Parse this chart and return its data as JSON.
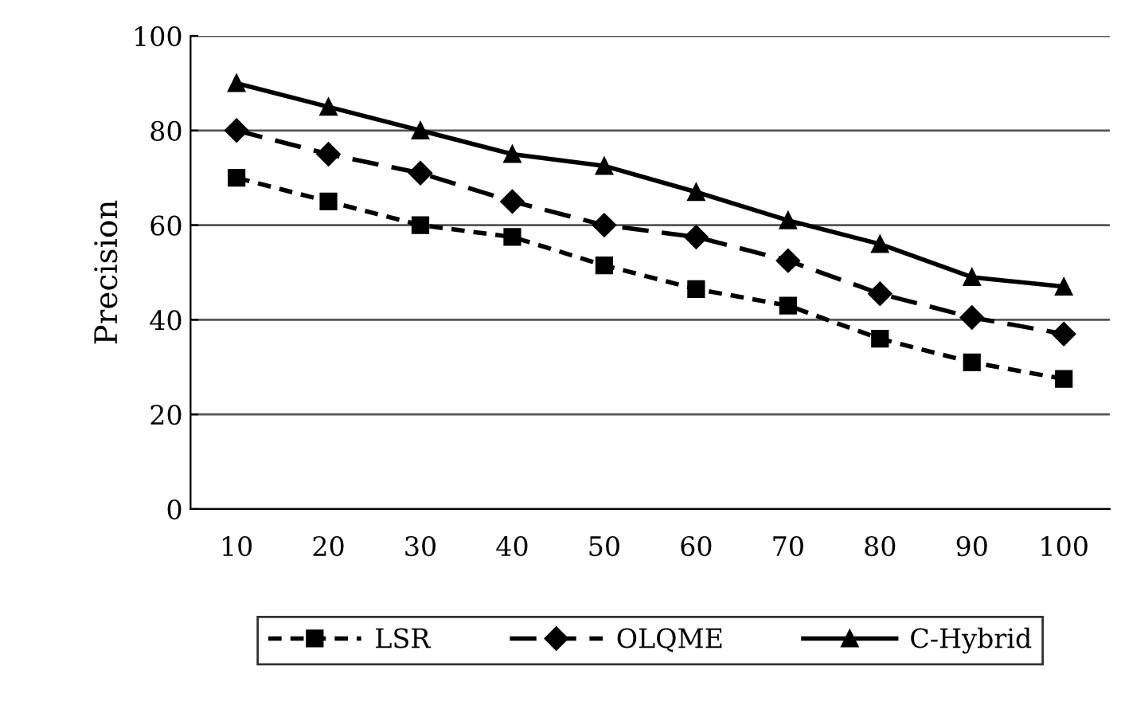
{
  "chart_data": {
    "type": "line",
    "ylabel": "Precision",
    "categories": [
      "10",
      "20",
      "30",
      "40",
      "50",
      "60",
      "70",
      "80",
      "90",
      "100"
    ],
    "ylim": [
      0,
      100
    ],
    "yticks": [
      0,
      20,
      40,
      60,
      80,
      100
    ],
    "grid": "y",
    "legend": "bottom",
    "series": [
      {
        "name": "LSR",
        "color": "#000000",
        "marker": "square",
        "line_style": "dotted",
        "values": [
          70,
          65,
          60,
          57.5,
          51.5,
          46.5,
          43,
          36,
          31,
          27.5
        ]
      },
      {
        "name": "OLQME",
        "color": "#000000",
        "marker": "diamond",
        "line_style": "dashed",
        "values": [
          80,
          75,
          71,
          65,
          60,
          57.5,
          52.5,
          45.5,
          40.5,
          37
        ]
      },
      {
        "name": "C-Hybrid",
        "color": "#000000",
        "marker": "triangle",
        "line_style": "solid",
        "values": [
          90,
          85,
          80,
          75,
          72.5,
          67,
          61,
          56,
          49,
          47
        ]
      }
    ]
  }
}
